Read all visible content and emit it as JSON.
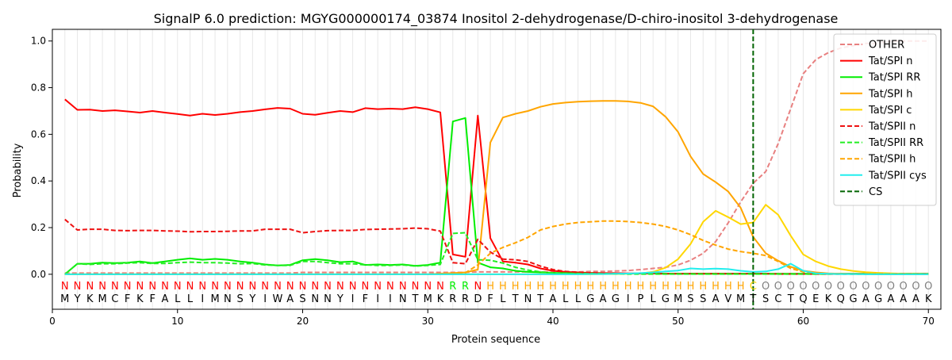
{
  "chart_data": {
    "type": "line",
    "title": "SignalP 6.0 prediction: MGYG000000174_03874 Inositol 2-dehydrogenase/D-chiro-inositol 3-dehydrogenase",
    "xlabel": "Protein sequence",
    "ylabel": "Probability",
    "xlim": [
      0,
      71
    ],
    "ylim": [
      -0.15,
      1.05
    ],
    "x_ticks": [
      0,
      10,
      20,
      30,
      40,
      50,
      60,
      70
    ],
    "y_ticks": [
      0.0,
      0.2,
      0.4,
      0.6,
      0.8,
      1.0
    ],
    "grid": "vertical light lines at each residue",
    "legend_position": "top-right",
    "sequence": [
      "M",
      "Y",
      "K",
      "M",
      "C",
      "F",
      "K",
      "F",
      "A",
      "L",
      "L",
      "I",
      "M",
      "N",
      "S",
      "Y",
      "I",
      "W",
      "A",
      "S",
      "N",
      "N",
      "Y",
      "I",
      "F",
      "I",
      "I",
      "N",
      "T",
      "M",
      "K",
      "R",
      "R",
      "D",
      "F",
      "L",
      "T",
      "N",
      "T",
      "A",
      "L",
      "L",
      "G",
      "A",
      "G",
      "I",
      "P",
      "L",
      "G",
      "M",
      "S",
      "S",
      "A",
      "V",
      "M",
      "T",
      "S",
      "C",
      "T",
      "Q",
      "E",
      "K",
      "Q",
      "G",
      "A",
      "G",
      "A",
      "A",
      "A",
      "K"
    ],
    "region_labels": [
      "N",
      "N",
      "N",
      "N",
      "N",
      "N",
      "N",
      "N",
      "N",
      "N",
      "N",
      "N",
      "N",
      "N",
      "N",
      "N",
      "N",
      "N",
      "N",
      "N",
      "N",
      "N",
      "N",
      "N",
      "N",
      "N",
      "N",
      "N",
      "N",
      "N",
      "N",
      "R",
      "R",
      "N",
      "H",
      "H",
      "H",
      "H",
      "H",
      "H",
      "H",
      "H",
      "H",
      "H",
      "H",
      "H",
      "H",
      "H",
      "H",
      "H",
      "H",
      "H",
      "H",
      "H",
      "H",
      "C",
      "O",
      "O",
      "O",
      "O",
      "O",
      "O",
      "O",
      "O",
      "O",
      "O",
      "O",
      "O",
      "O",
      "O"
    ],
    "region_colors": {
      "N": "#ff0000",
      "R": "#00ee00",
      "H": "#ffa500",
      "C": "#ffd700",
      "O": "#808080"
    },
    "cleavage_site": 56,
    "series": [
      {
        "name": "OTHER",
        "color": "#e88080",
        "dash": "dashed",
        "values": [
          0.005,
          0.005,
          0.005,
          0.005,
          0.005,
          0.005,
          0.005,
          0.005,
          0.005,
          0.005,
          0.005,
          0.005,
          0.005,
          0.005,
          0.005,
          0.005,
          0.005,
          0.005,
          0.005,
          0.008,
          0.008,
          0.008,
          0.008,
          0.008,
          0.008,
          0.008,
          0.008,
          0.008,
          0.008,
          0.008,
          0.008,
          0.008,
          0.008,
          0.01,
          0.01,
          0.01,
          0.01,
          0.01,
          0.01,
          0.01,
          0.01,
          0.01,
          0.012,
          0.012,
          0.014,
          0.016,
          0.02,
          0.025,
          0.03,
          0.04,
          0.06,
          0.09,
          0.14,
          0.22,
          0.31,
          0.39,
          0.44,
          0.56,
          0.71,
          0.86,
          0.92,
          0.95,
          0.97,
          0.98,
          0.99,
          0.99,
          1.0,
          1.0,
          1.0,
          1.0
        ]
      },
      {
        "name": "Tat/SPI n",
        "color": "#ff0000",
        "dash": "solid",
        "values": [
          0.75,
          0.705,
          0.706,
          0.7,
          0.703,
          0.698,
          0.693,
          0.7,
          0.693,
          0.687,
          0.68,
          0.688,
          0.683,
          0.688,
          0.695,
          0.7,
          0.707,
          0.713,
          0.71,
          0.688,
          0.684,
          0.692,
          0.7,
          0.695,
          0.712,
          0.708,
          0.71,
          0.708,
          0.716,
          0.708,
          0.694,
          0.085,
          0.075,
          0.68,
          0.155,
          0.055,
          0.05,
          0.042,
          0.025,
          0.015,
          0.01,
          0.008,
          0.006,
          0.005,
          0.005,
          0.004,
          0.004,
          0.004,
          0.003,
          0.003,
          0.003,
          0.003,
          0.003,
          0.003,
          0.003,
          0.003,
          0.003,
          0.002,
          0.002,
          0.002,
          0.002,
          0.002,
          0.002,
          0.002,
          0.002,
          0.002,
          0.002,
          0.002,
          0.002,
          0.002
        ]
      },
      {
        "name": "Tat/SPI RR",
        "color": "#00ee00",
        "dash": "solid",
        "values": [
          0.0,
          0.045,
          0.045,
          0.05,
          0.048,
          0.05,
          0.055,
          0.048,
          0.055,
          0.062,
          0.068,
          0.062,
          0.066,
          0.062,
          0.055,
          0.05,
          0.042,
          0.038,
          0.04,
          0.06,
          0.065,
          0.06,
          0.052,
          0.055,
          0.04,
          0.042,
          0.04,
          0.042,
          0.036,
          0.04,
          0.05,
          0.655,
          0.67,
          0.05,
          0.03,
          0.025,
          0.015,
          0.01,
          0.008,
          0.006,
          0.005,
          0.004,
          0.004,
          0.003,
          0.003,
          0.003,
          0.003,
          0.003,
          0.002,
          0.002,
          0.002,
          0.002,
          0.002,
          0.002,
          0.002,
          0.002,
          0.002,
          0.002,
          0.002,
          0.002,
          0.002,
          0.002,
          0.002,
          0.002,
          0.002,
          0.002,
          0.002,
          0.002,
          0.002,
          0.002
        ]
      },
      {
        "name": "Tat/SPI h",
        "color": "#ffa500",
        "dash": "solid",
        "values": [
          0.0,
          0.0,
          0.0,
          0.0,
          0.0,
          0.0,
          0.0,
          0.0,
          0.0,
          0.0,
          0.0,
          0.0,
          0.0,
          0.0,
          0.0,
          0.0,
          0.0,
          0.0,
          0.0,
          0.0,
          0.0,
          0.0,
          0.0,
          0.0,
          0.0,
          0.0,
          0.0,
          0.0,
          0.0,
          0.0,
          0.003,
          0.005,
          0.008,
          0.02,
          0.565,
          0.672,
          0.688,
          0.7,
          0.718,
          0.73,
          0.736,
          0.74,
          0.742,
          0.743,
          0.743,
          0.741,
          0.735,
          0.72,
          0.675,
          0.61,
          0.505,
          0.43,
          0.395,
          0.355,
          0.285,
          0.16,
          0.09,
          0.058,
          0.032,
          0.015,
          0.008,
          0.004,
          0.002,
          0.001,
          0.001,
          0.0,
          0.0,
          0.0,
          0.0,
          0.0
        ]
      },
      {
        "name": "Tat/SPI c",
        "color": "#ffd700",
        "dash": "solid",
        "values": [
          0.0,
          0.0,
          0.0,
          0.0,
          0.0,
          0.0,
          0.0,
          0.0,
          0.0,
          0.0,
          0.0,
          0.0,
          0.0,
          0.0,
          0.0,
          0.0,
          0.0,
          0.0,
          0.0,
          0.0,
          0.0,
          0.0,
          0.0,
          0.0,
          0.0,
          0.0,
          0.0,
          0.0,
          0.0,
          0.0,
          0.0,
          0.0,
          0.0,
          0.0,
          0.0,
          0.0,
          0.0,
          0.0,
          0.0,
          0.0,
          0.0,
          0.0,
          0.0,
          0.001,
          0.001,
          0.002,
          0.004,
          0.01,
          0.028,
          0.065,
          0.13,
          0.225,
          0.272,
          0.245,
          0.215,
          0.222,
          0.298,
          0.255,
          0.165,
          0.085,
          0.055,
          0.035,
          0.022,
          0.014,
          0.009,
          0.006,
          0.004,
          0.002,
          0.002,
          0.001
        ]
      },
      {
        "name": "Tat/SPII n",
        "color": "#ee1111",
        "dash": "dashed",
        "values": [
          0.235,
          0.19,
          0.193,
          0.193,
          0.188,
          0.187,
          0.188,
          0.188,
          0.186,
          0.185,
          0.182,
          0.183,
          0.183,
          0.184,
          0.186,
          0.186,
          0.193,
          0.193,
          0.193,
          0.178,
          0.183,
          0.187,
          0.188,
          0.188,
          0.192,
          0.193,
          0.194,
          0.195,
          0.198,
          0.195,
          0.185,
          0.05,
          0.045,
          0.15,
          0.095,
          0.065,
          0.062,
          0.055,
          0.035,
          0.02,
          0.012,
          0.008,
          0.006,
          0.005,
          0.004,
          0.003,
          0.003,
          0.003,
          0.002,
          0.002,
          0.002,
          0.002,
          0.002,
          0.002,
          0.002,
          0.002,
          0.002,
          0.001,
          0.001,
          0.001,
          0.001,
          0.001,
          0.001,
          0.001,
          0.001,
          0.001,
          0.001,
          0.001,
          0.001,
          0.001
        ]
      },
      {
        "name": "Tat/SPII RR",
        "color": "#22ee22",
        "dash": "dashed",
        "values": [
          0.0,
          0.045,
          0.042,
          0.045,
          0.045,
          0.048,
          0.05,
          0.046,
          0.046,
          0.05,
          0.052,
          0.05,
          0.05,
          0.048,
          0.045,
          0.046,
          0.04,
          0.038,
          0.038,
          0.055,
          0.055,
          0.05,
          0.045,
          0.045,
          0.04,
          0.038,
          0.038,
          0.04,
          0.035,
          0.038,
          0.042,
          0.175,
          0.178,
          0.062,
          0.06,
          0.048,
          0.03,
          0.018,
          0.01,
          0.006,
          0.004,
          0.003,
          0.002,
          0.002,
          0.002,
          0.001,
          0.001,
          0.001,
          0.001,
          0.001,
          0.001,
          0.001,
          0.001,
          0.001,
          0.001,
          0.001,
          0.001,
          0.001,
          0.001,
          0.001,
          0.001,
          0.001,
          0.001,
          0.001,
          0.001,
          0.001,
          0.001,
          0.001,
          0.001,
          0.001
        ]
      },
      {
        "name": "Tat/SPII h",
        "color": "#ffa500",
        "dash": "dashed",
        "values": [
          0.0,
          0.0,
          0.0,
          0.0,
          0.0,
          0.0,
          0.0,
          0.0,
          0.0,
          0.0,
          0.0,
          0.0,
          0.0,
          0.0,
          0.0,
          0.0,
          0.0,
          0.0,
          0.0,
          0.0,
          0.0,
          0.0,
          0.0,
          0.0,
          0.0,
          0.0,
          0.0,
          0.0,
          0.0,
          0.0,
          0.002,
          0.004,
          0.006,
          0.04,
          0.09,
          0.115,
          0.135,
          0.158,
          0.19,
          0.205,
          0.215,
          0.222,
          0.225,
          0.228,
          0.228,
          0.226,
          0.222,
          0.215,
          0.205,
          0.19,
          0.17,
          0.145,
          0.125,
          0.108,
          0.097,
          0.09,
          0.08,
          0.055,
          0.025,
          0.01,
          0.005,
          0.003,
          0.002,
          0.001,
          0.001,
          0.0,
          0.0,
          0.0,
          0.0,
          0.0
        ]
      },
      {
        "name": "Tat/SPII cys",
        "color": "#22eeee",
        "dash": "solid",
        "values": [
          0.0,
          0.0,
          0.0,
          0.0,
          0.0,
          0.0,
          0.0,
          0.0,
          0.0,
          0.0,
          0.0,
          0.0,
          0.0,
          0.0,
          0.0,
          0.0,
          0.0,
          0.0,
          0.0,
          0.0,
          0.0,
          0.0,
          0.0,
          0.0,
          0.0,
          0.0,
          0.0,
          0.0,
          0.0,
          0.0,
          0.0,
          0.0,
          0.0,
          0.0,
          0.0,
          0.0,
          0.0,
          0.0,
          0.0,
          0.0,
          0.0,
          0.0,
          0.001,
          0.001,
          0.002,
          0.003,
          0.005,
          0.008,
          0.012,
          0.016,
          0.025,
          0.022,
          0.024,
          0.022,
          0.015,
          0.01,
          0.012,
          0.022,
          0.045,
          0.015,
          0.004,
          0.002,
          0.001,
          0.001,
          0.0,
          0.0,
          0.0,
          0.0,
          0.0,
          0.0
        ]
      }
    ],
    "legend_entries": [
      "OTHER",
      "Tat/SPI n",
      "Tat/SPI RR",
      "Tat/SPI h",
      "Tat/SPI c",
      "Tat/SPII n",
      "Tat/SPII RR",
      "Tat/SPII h",
      "Tat/SPII cys",
      "CS"
    ],
    "cs_color": "#006400"
  }
}
